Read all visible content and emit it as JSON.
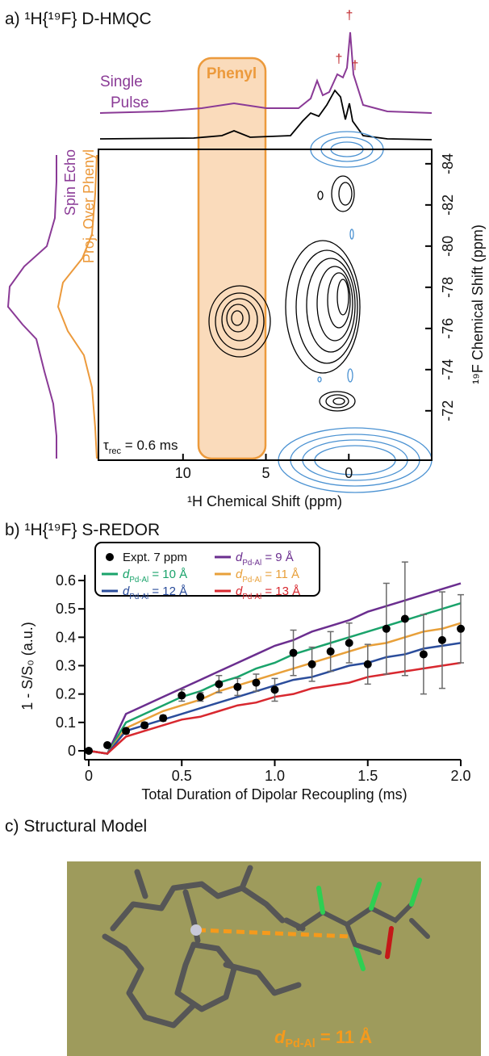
{
  "chart_data": [
    {
      "type": "contour",
      "title": "a) ¹H{¹⁹F} D-HMQC",
      "xlabel": "¹H Chemical Shift (ppm)",
      "ylabel": "¹⁹F Chemical Shift (ppm)",
      "xlim": [
        15.1,
        -5
      ],
      "ylim": [
        -69.6,
        -84.7
      ],
      "xticks": [
        10,
        5,
        0
      ],
      "yticks": [
        -84,
        -82,
        -80,
        -78,
        -76,
        -74,
        -72
      ],
      "region_label": "Phenyl",
      "top_trace_label": [
        "Single",
        "Pulse"
      ],
      "peak_marks": [
        "†",
        "†",
        "†"
      ],
      "side_trace_labels": [
        "Spin Echo",
        "Proj. Over Phenyl"
      ],
      "mixing_label": "τrec = 0.6 ms"
    },
    {
      "type": "scatter",
      "title": "b) ¹H{¹⁹F} S-REDOR",
      "xlabel": "Total Duration of Dipolar Recoupling (ms)",
      "ylabel": "1 - S/S₀ (a.u.)",
      "xlim": [
        0,
        2
      ],
      "ylim": [
        -0.02,
        0.62
      ],
      "xticks": [
        0,
        0.5,
        {
          "value": 1,
          "label": "1.0"
        },
        1.5,
        {
          "value": 2,
          "label": "2.0"
        }
      ],
      "yticks": [
        0,
        0.1,
        0.2,
        0.3,
        0.4,
        0.5,
        0.6
      ],
      "x": [
        0,
        0.1,
        0.2,
        0.3,
        0.4,
        0.5,
        0.6,
        0.7,
        0.8,
        0.9,
        1.0,
        1.1,
        1.2,
        1.3,
        1.4,
        1.5,
        1.6,
        1.7,
        1.8,
        1.9,
        2.0
      ],
      "series": [
        {
          "name": "Expt. 7 ppm",
          "mark": "point",
          "color": "#000000",
          "values": [
            0,
            0.02,
            0.07,
            0.09,
            0.115,
            0.195,
            0.19,
            0.235,
            0.225,
            0.24,
            0.215,
            0.345,
            0.305,
            0.35,
            0.38,
            0.305,
            0.43,
            0.465,
            0.34,
            0.39,
            0.43
          ],
          "errors": [
            0,
            0,
            0.01,
            0.01,
            0.01,
            0.02,
            0.015,
            0.03,
            0.03,
            0.03,
            0.04,
            0.08,
            0.06,
            0.07,
            0.07,
            0.07,
            0.16,
            0.2,
            0.14,
            0.17,
            0.12
          ]
        },
        {
          "name": "dPd-Al = 9 Å",
          "mark": "line",
          "color": "#6b2e8f",
          "values": [
            0,
            -0.01,
            0.13,
            0.16,
            0.19,
            0.22,
            0.25,
            0.28,
            0.31,
            0.34,
            0.37,
            0.39,
            0.42,
            0.44,
            0.46,
            0.49,
            0.51,
            0.53,
            0.55,
            0.57,
            0.59
          ]
        },
        {
          "name": "dPd-Al = 10 Å",
          "mark": "line",
          "color": "#1aa36b",
          "values": [
            0,
            -0.01,
            0.1,
            0.13,
            0.16,
            0.19,
            0.21,
            0.24,
            0.26,
            0.29,
            0.31,
            0.34,
            0.36,
            0.38,
            0.4,
            0.42,
            0.44,
            0.46,
            0.48,
            0.5,
            0.52
          ]
        },
        {
          "name": "dPd-Al = 11 Å",
          "mark": "line",
          "color": "#e8a03a",
          "values": [
            0,
            -0.01,
            0.08,
            0.11,
            0.14,
            0.16,
            0.18,
            0.21,
            0.23,
            0.25,
            0.27,
            0.29,
            0.31,
            0.33,
            0.35,
            0.37,
            0.38,
            0.4,
            0.42,
            0.43,
            0.45
          ]
        },
        {
          "name": "dPd-Al = 12 Å",
          "mark": "line",
          "color": "#2b4d9b",
          "values": [
            0,
            -0.01,
            0.07,
            0.09,
            0.11,
            0.13,
            0.15,
            0.17,
            0.19,
            0.21,
            0.23,
            0.25,
            0.26,
            0.28,
            0.3,
            0.31,
            0.33,
            0.34,
            0.36,
            0.37,
            0.38
          ]
        },
        {
          "name": "dPd-Al = 13 Å",
          "mark": "line",
          "color": "#d8282f",
          "values": [
            0,
            -0.01,
            0.05,
            0.07,
            0.09,
            0.11,
            0.12,
            0.14,
            0.16,
            0.17,
            0.19,
            0.2,
            0.22,
            0.23,
            0.24,
            0.26,
            0.27,
            0.28,
            0.29,
            0.3,
            0.31
          ]
        }
      ]
    }
  ],
  "model": {
    "title": "c) Structural Model",
    "label": "dPd-Al = 11 Å"
  }
}
